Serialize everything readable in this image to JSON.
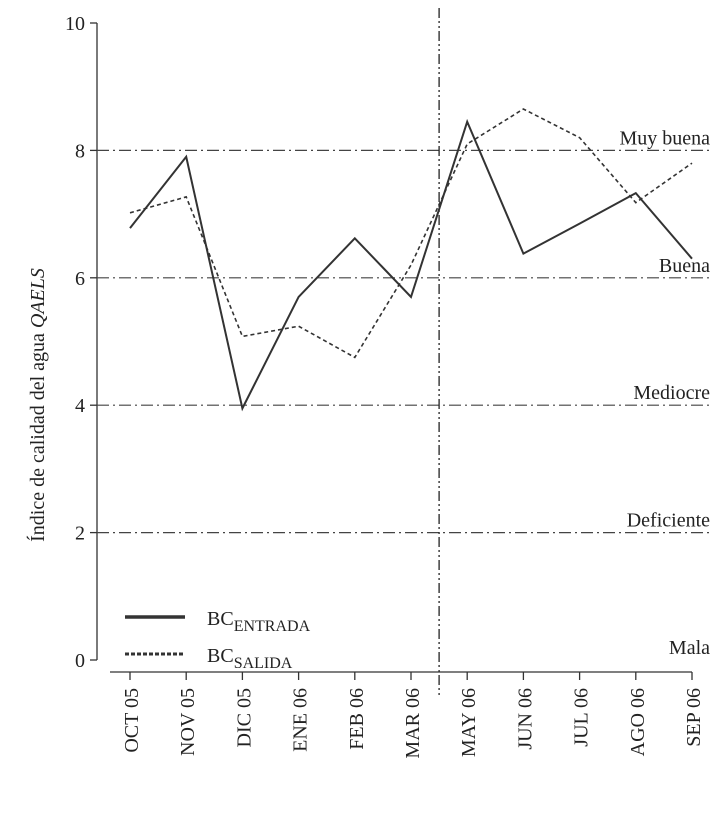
{
  "chart_data": {
    "type": "line",
    "ylabel": "Índice de calidad del agua",
    "ylabel_italic": "QAELS",
    "categories": [
      "OCT 05",
      "NOV 05",
      "DIC 05",
      "ENE 06",
      "FEB 06",
      "MAR 06",
      "MAY 06",
      "JUN 06",
      "JUL 06",
      "AGO 06",
      "SEP 06"
    ],
    "series": [
      {
        "name": "BC",
        "subscript": "ENTRADA",
        "style": "solid",
        "color": "#333333",
        "values": [
          6.78,
          7.9,
          3.95,
          5.7,
          6.62,
          5.7,
          8.45,
          6.38,
          6.85,
          7.33,
          6.3
        ]
      },
      {
        "name": "BC",
        "subscript": "SALIDA",
        "style": "dotted",
        "color": "#333333",
        "values": [
          7.02,
          7.27,
          5.08,
          5.24,
          4.75,
          6.2,
          8.1,
          8.65,
          8.2,
          7.18,
          7.8
        ]
      }
    ],
    "ylim": [
      0,
      10
    ],
    "yticks": [
      0,
      2,
      4,
      6,
      8,
      10
    ],
    "quality_bands": [
      {
        "value": 0,
        "label": "Mala"
      },
      {
        "value": 2,
        "label": "Deficiente"
      },
      {
        "value": 4,
        "label": "Mediocre"
      },
      {
        "value": 6,
        "label": "Buena"
      },
      {
        "value": 8,
        "label": "Muy buena"
      }
    ],
    "divider_after": "MAR 06"
  }
}
